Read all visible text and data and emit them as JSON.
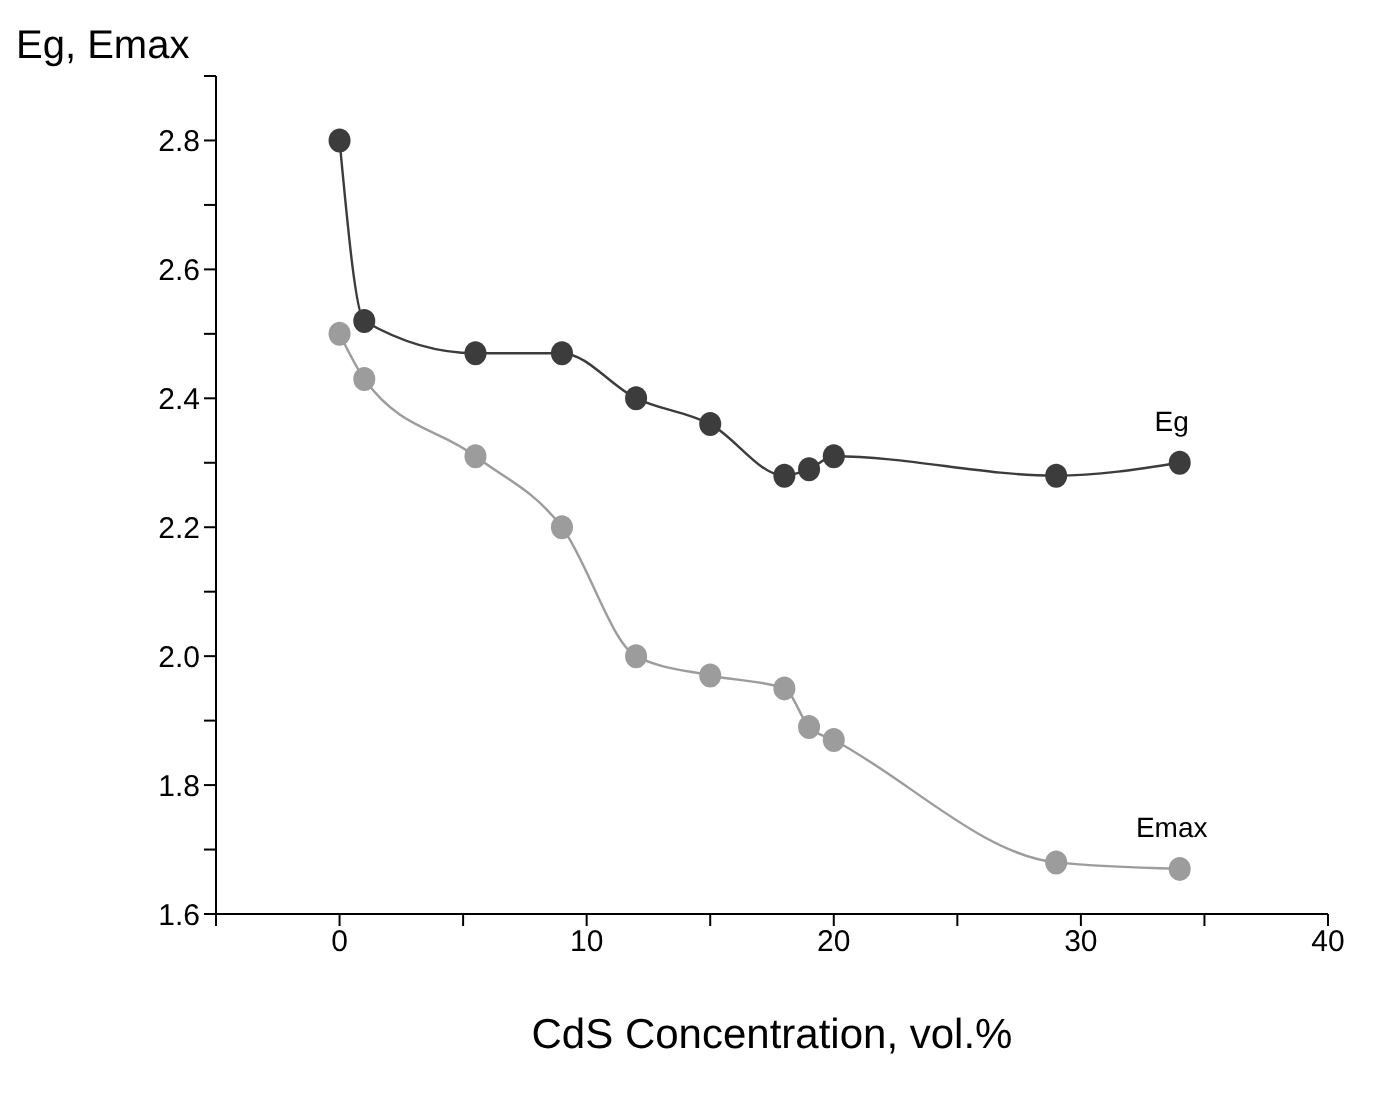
{
  "chart_data": {
    "type": "line",
    "xlabel": "CdS Concentration, vol.%",
    "ylabel": "Eg, Emax",
    "xlim": [
      -5,
      40
    ],
    "xticks": [
      {
        "value": -5,
        "label": null
      },
      0,
      {
        "value": 5,
        "label": null
      },
      10,
      {
        "value": 15,
        "label": null
      },
      20,
      {
        "value": 25,
        "label": null
      },
      30,
      {
        "value": 35,
        "label": null
      },
      40
    ],
    "ylim": [
      1.6,
      2.9
    ],
    "yticks": [
      {
        "value": 1.6,
        "label": "1.6"
      },
      {
        "value": 1.7,
        "label": null
      },
      {
        "value": 1.8,
        "label": "1.8"
      },
      {
        "value": 1.9,
        "label": null
      },
      {
        "value": 2.0,
        "label": "2.0"
      },
      {
        "value": 2.1,
        "label": null
      },
      {
        "value": 2.2,
        "label": "2.2"
      },
      {
        "value": 2.3,
        "label": null
      },
      {
        "value": 2.4,
        "label": "2.4"
      },
      {
        "value": 2.5,
        "label": null
      },
      {
        "value": 2.6,
        "label": "2.6"
      },
      {
        "value": 2.7,
        "label": null
      },
      {
        "value": 2.8,
        "label": "2.8"
      },
      {
        "value": 2.9,
        "label": null
      }
    ],
    "grid": false,
    "legend": false,
    "marker": "circle",
    "line_style": "solid",
    "x": [
      0,
      1,
      5.5,
      9,
      12,
      15,
      18,
      19,
      20,
      29,
      34
    ],
    "series": [
      {
        "name": "Eg",
        "color": "#3c3c3c",
        "values": [
          2.8,
          2.52,
          2.47,
          2.47,
          2.4,
          2.36,
          2.28,
          2.29,
          2.31,
          2.28,
          2.3
        ]
      },
      {
        "name": "Emax",
        "color": "#9c9c9c",
        "values": [
          2.5,
          2.43,
          2.31,
          2.2,
          2.0,
          1.97,
          1.95,
          1.89,
          1.87,
          1.68,
          1.67
        ]
      }
    ]
  }
}
